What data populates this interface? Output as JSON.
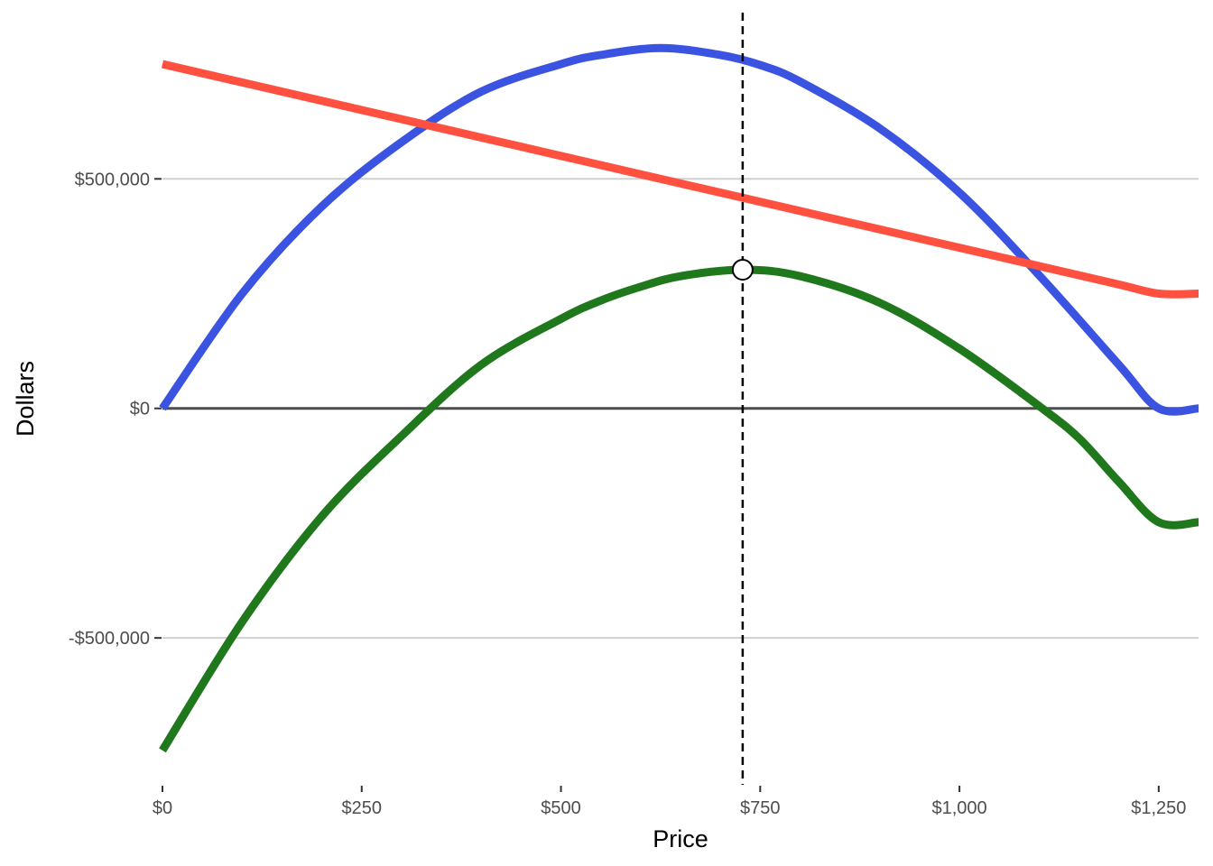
{
  "chart_data": {
    "type": "line",
    "title": "",
    "xlabel": "Price",
    "ylabel": "Dollars",
    "xlim": [
      0,
      1300
    ],
    "ylim": [
      -820000,
      870000
    ],
    "x_ticks": [
      {
        "value": 0,
        "label": "$0"
      },
      {
        "value": 250,
        "label": "$250"
      },
      {
        "value": 500,
        "label": "$500"
      },
      {
        "value": 750,
        "label": "$750"
      },
      {
        "value": 1000,
        "label": "$1,000"
      },
      {
        "value": 1250,
        "label": "$1,250"
      }
    ],
    "y_ticks": [
      {
        "value": 500000,
        "label": "$500,000"
      },
      {
        "value": 0,
        "label": "$0"
      },
      {
        "value": -500000,
        "label": "-$500,000"
      }
    ],
    "grid": "horizontal major gridlines",
    "zero_line": 0,
    "legend": "none",
    "series": [
      {
        "color": "#3a53e0",
        "points": [
          [
            0,
            0
          ],
          [
            100,
            250000
          ],
          [
            200,
            440000
          ],
          [
            300,
            580000
          ],
          [
            400,
            690000
          ],
          [
            500,
            750000
          ],
          [
            550,
            770000
          ],
          [
            625,
            785000
          ],
          [
            700,
            770000
          ],
          [
            750,
            748000
          ],
          [
            800,
            712000
          ],
          [
            900,
            610000
          ],
          [
            1000,
            470000
          ],
          [
            1100,
            290000
          ],
          [
            1200,
            95000
          ],
          [
            1250,
            0
          ],
          [
            1300,
            0
          ]
        ]
      },
      {
        "color": "#ff5040",
        "points": [
          [
            0,
            750000
          ],
          [
            100,
            710000
          ],
          [
            200,
            670000
          ],
          [
            300,
            630000
          ],
          [
            400,
            590000
          ],
          [
            500,
            550000
          ],
          [
            600,
            510000
          ],
          [
            700,
            470000
          ],
          [
            800,
            430000
          ],
          [
            900,
            390000
          ],
          [
            1000,
            350000
          ],
          [
            1100,
            310000
          ],
          [
            1200,
            270000
          ],
          [
            1250,
            250000
          ],
          [
            1300,
            250000
          ]
        ]
      },
      {
        "color": "#20781c",
        "points": [
          [
            0,
            -745000
          ],
          [
            100,
            -465000
          ],
          [
            200,
            -235000
          ],
          [
            300,
            -60000
          ],
          [
            400,
            95000
          ],
          [
            500,
            195000
          ],
          [
            550,
            235000
          ],
          [
            600,
            265000
          ],
          [
            650,
            288000
          ],
          [
            728,
            302000
          ],
          [
            800,
            288000
          ],
          [
            900,
            230000
          ],
          [
            1000,
            130000
          ],
          [
            1100,
            5000
          ],
          [
            1150,
            -65000
          ],
          [
            1200,
            -160000
          ],
          [
            1250,
            -248000
          ],
          [
            1300,
            -248000
          ]
        ]
      }
    ],
    "vline": {
      "x": 728,
      "style": "dashed"
    },
    "marker": {
      "x": 728,
      "y": 302000
    }
  }
}
